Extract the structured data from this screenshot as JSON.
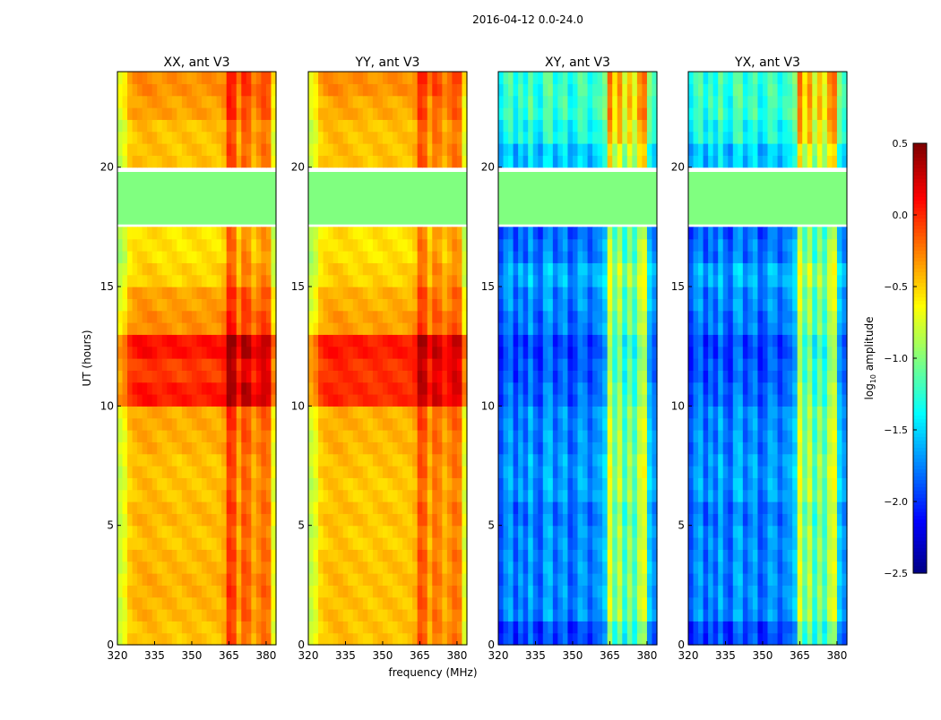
{
  "chart_data": {
    "type": "heatmap",
    "title": "2016-04-12 0.0-24.0",
    "xlabel": "frequency (MHz)",
    "ylabel": "UT (hours)",
    "xlim": [
      320,
      384
    ],
    "ylim": [
      0,
      24
    ],
    "xticks": [
      "320",
      "335",
      "350",
      "365",
      "380"
    ],
    "yticks": [
      "0",
      "5",
      "10",
      "15",
      "20"
    ],
    "colorbar": {
      "label": "log10 amplitude",
      "label_main": "log",
      "label_sub": "10",
      "label_rest": " amplitude",
      "range": [
        -2.5,
        0.5
      ],
      "ticks": [
        "0.5",
        "0.0",
        "−0.5",
        "−1.0",
        "−1.5",
        "−2.0",
        "−2.5"
      ],
      "colormap": "jet"
    },
    "flagged_hours": [
      17.6,
      19.8
    ],
    "flagged_value": -1.0,
    "freq_channels_mhz": [
      320,
      322,
      324,
      326,
      328,
      330,
      332,
      334,
      336,
      338,
      340,
      342,
      344,
      346,
      348,
      350,
      352,
      354,
      356,
      358,
      360,
      362,
      364,
      366,
      368,
      370,
      372,
      374,
      376,
      378,
      380,
      382
    ],
    "panels": [
      {
        "title": "XX, ant V3",
        "hourly_level": [
          -0.45,
          -0.42,
          -0.4,
          -0.42,
          -0.45,
          -0.42,
          -0.45,
          -0.45,
          -0.4,
          -0.38,
          0.05,
          -0.05,
          0.08,
          -0.3,
          -0.35,
          -0.5,
          -0.55,
          -0.55,
          -1,
          -1,
          -0.45,
          -0.45,
          -0.35,
          -0.3
        ],
        "freq_offset": [
          -0.35,
          -0.25,
          -0.05,
          0,
          0.02,
          0.03,
          0.03,
          0.02,
          0,
          0,
          0,
          0,
          -0.02,
          0,
          0,
          0,
          0,
          0,
          0,
          0,
          0,
          0.05,
          0.4,
          0.35,
          0.05,
          0.3,
          0.25,
          0.05,
          0.15,
          0.25,
          0.2,
          -0.25
        ]
      },
      {
        "title": "YY, ant V3",
        "hourly_level": [
          -0.45,
          -0.45,
          -0.45,
          -0.45,
          -0.48,
          -0.45,
          -0.48,
          -0.45,
          -0.42,
          -0.4,
          0.0,
          -0.02,
          0.05,
          -0.35,
          -0.4,
          -0.5,
          -0.55,
          -0.55,
          -1,
          -1,
          -0.45,
          -0.45,
          -0.38,
          -0.3
        ],
        "freq_offset": [
          -0.35,
          -0.25,
          -0.05,
          0,
          0.02,
          0.03,
          0.03,
          0.02,
          0,
          0,
          0,
          0,
          -0.02,
          0,
          0,
          0,
          0,
          0,
          0,
          0,
          0,
          0.05,
          0.35,
          0.3,
          0.05,
          0.25,
          0.2,
          0.05,
          0.15,
          0.25,
          0.2,
          -0.25
        ]
      },
      {
        "title": "XY, ant V3",
        "hourly_level": [
          -2.0,
          -1.8,
          -1.8,
          -1.8,
          -1.8,
          -1.85,
          -1.75,
          -1.75,
          -1.8,
          -1.8,
          -1.9,
          -1.95,
          -2.0,
          -1.85,
          -1.8,
          -1.7,
          -1.85,
          -1.9,
          -1,
          -1,
          -1.6,
          -1.4,
          -1.3,
          -1.3
        ],
        "freq_offset": [
          -0.1,
          0.1,
          0.2,
          -0.1,
          0.15,
          -0.05,
          0.25,
          0.0,
          -0.1,
          0.2,
          0.25,
          -0.05,
          0.1,
          0.2,
          -0.1,
          0.0,
          0.2,
          0.15,
          -0.05,
          0.1,
          0.15,
          0.3,
          1.1,
          0.7,
          1.0,
          0.55,
          0.9,
          0.6,
          1.0,
          1.1,
          0.3,
          0.1
        ]
      },
      {
        "title": "YX, ant V3",
        "hourly_level": [
          -2.0,
          -1.8,
          -1.8,
          -1.8,
          -1.8,
          -1.85,
          -1.75,
          -1.75,
          -1.8,
          -1.8,
          -1.9,
          -1.95,
          -2.0,
          -1.85,
          -1.8,
          -1.7,
          -1.85,
          -1.9,
          -1,
          -1,
          -1.6,
          -1.4,
          -1.3,
          -1.3
        ],
        "freq_offset": [
          -0.1,
          0.1,
          0.2,
          -0.1,
          0.15,
          -0.05,
          0.25,
          0.0,
          -0.1,
          0.2,
          0.25,
          -0.05,
          0.1,
          0.2,
          -0.1,
          0.0,
          0.2,
          0.15,
          -0.05,
          0.1,
          0.15,
          0.3,
          1.1,
          0.7,
          1.0,
          0.55,
          0.9,
          0.6,
          1.0,
          1.1,
          0.3,
          0.1
        ]
      }
    ]
  }
}
